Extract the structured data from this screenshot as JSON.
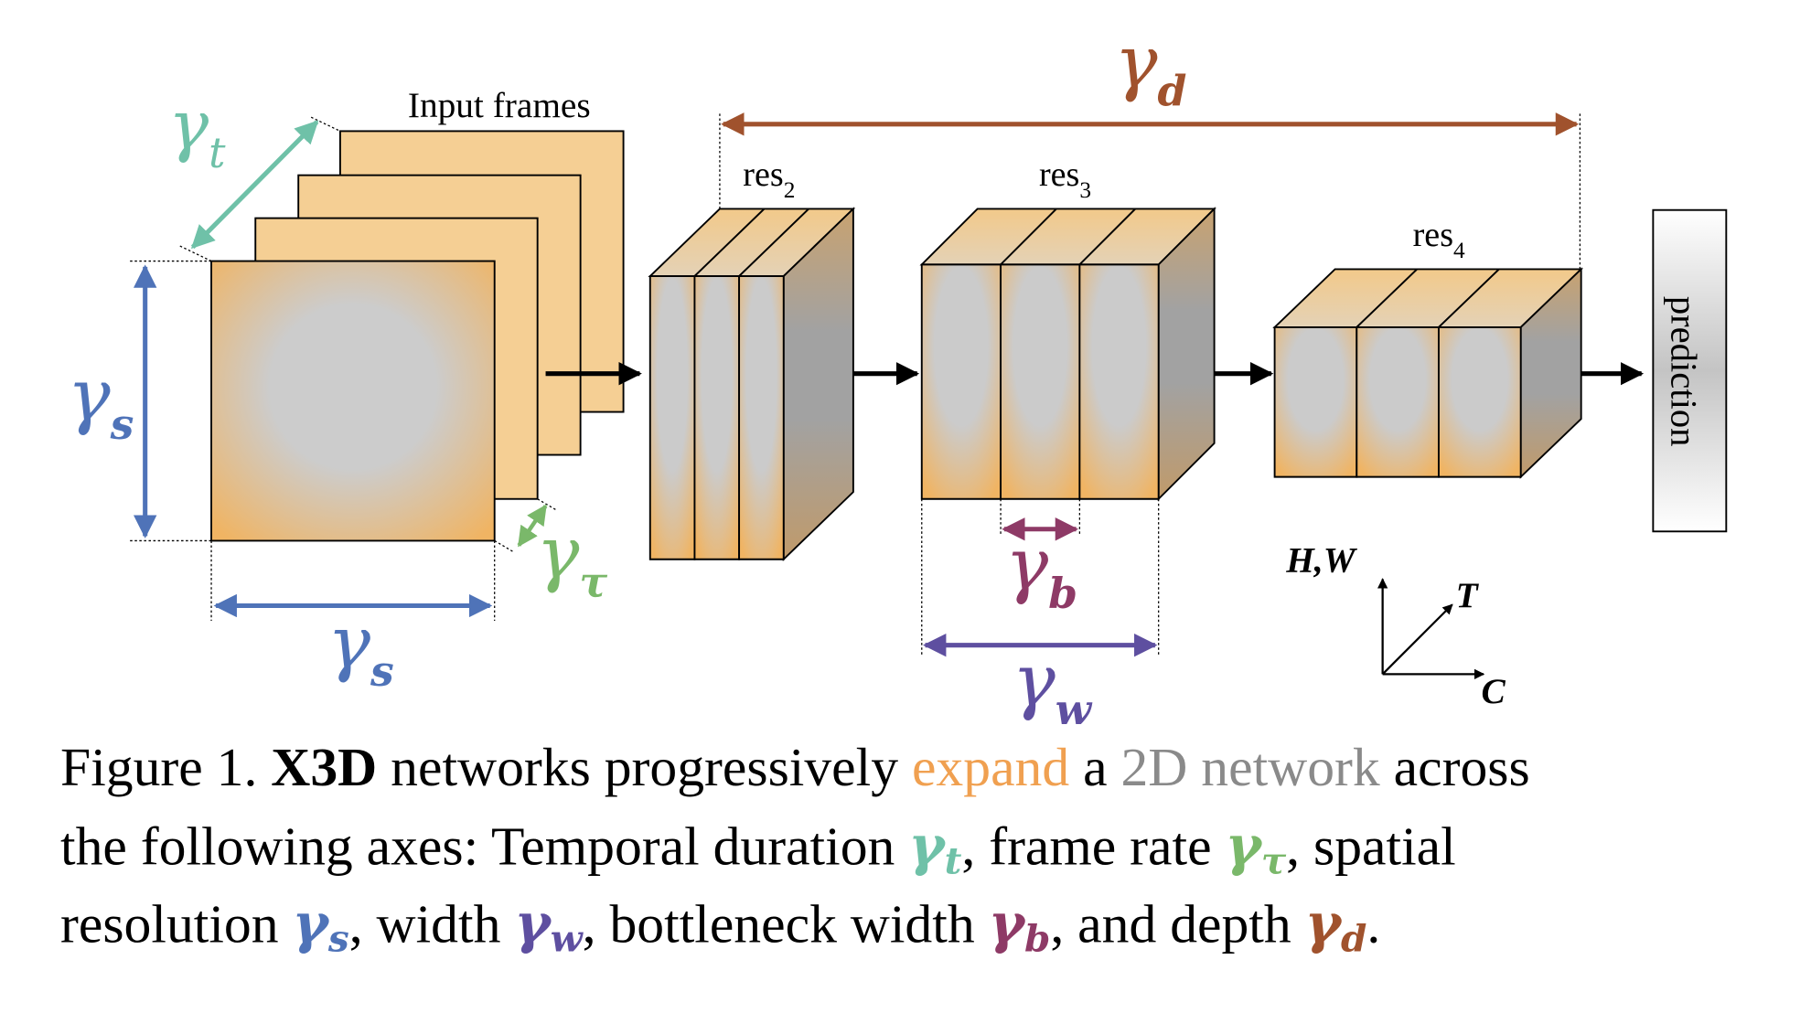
{
  "labels": {
    "input_frames": "Input frames",
    "res2": {
      "base": "res",
      "sub": "2"
    },
    "res3": {
      "base": "res",
      "sub": "3"
    },
    "res4": {
      "base": "res",
      "sub": "4"
    },
    "prediction": "prediction",
    "axes": {
      "hw": "H,W",
      "t": "T",
      "c": "C"
    }
  },
  "gammas": {
    "t": {
      "sym": "γ",
      "sub": "t",
      "color": "#6fc1a8"
    },
    "tau": {
      "sym": "γ",
      "sub": "τ",
      "color": "#7ab86a"
    },
    "s": {
      "sym": "γ",
      "sub": "s",
      "color": "#4f73b8"
    },
    "w": {
      "sym": "γ",
      "sub": "w",
      "color": "#5e4fa0"
    },
    "b": {
      "sym": "γ",
      "sub": "b",
      "color": "#8e3a66"
    },
    "d": {
      "sym": "γ",
      "sub": "d",
      "color": "#a0522d"
    }
  },
  "caption": {
    "line1": {
      "prefix": "Figure 1. ",
      "bold": "X3D",
      "mid": " networks progressively ",
      "expand": "expand",
      "a": " a ",
      "network2d": "2D network",
      "end": " across"
    },
    "line2": {
      "prefix": "the following axes: Temporal duration ",
      "p2": ", frame rate ",
      "end": ", spatial"
    },
    "line3": {
      "prefix": "resolution ",
      "p2": ", width ",
      "p3": ", bottleneck width ",
      "p4": ", and depth ",
      "end": "."
    },
    "colors": {
      "expand": "#f0a050",
      "network2d": "#8a8a8a"
    }
  }
}
